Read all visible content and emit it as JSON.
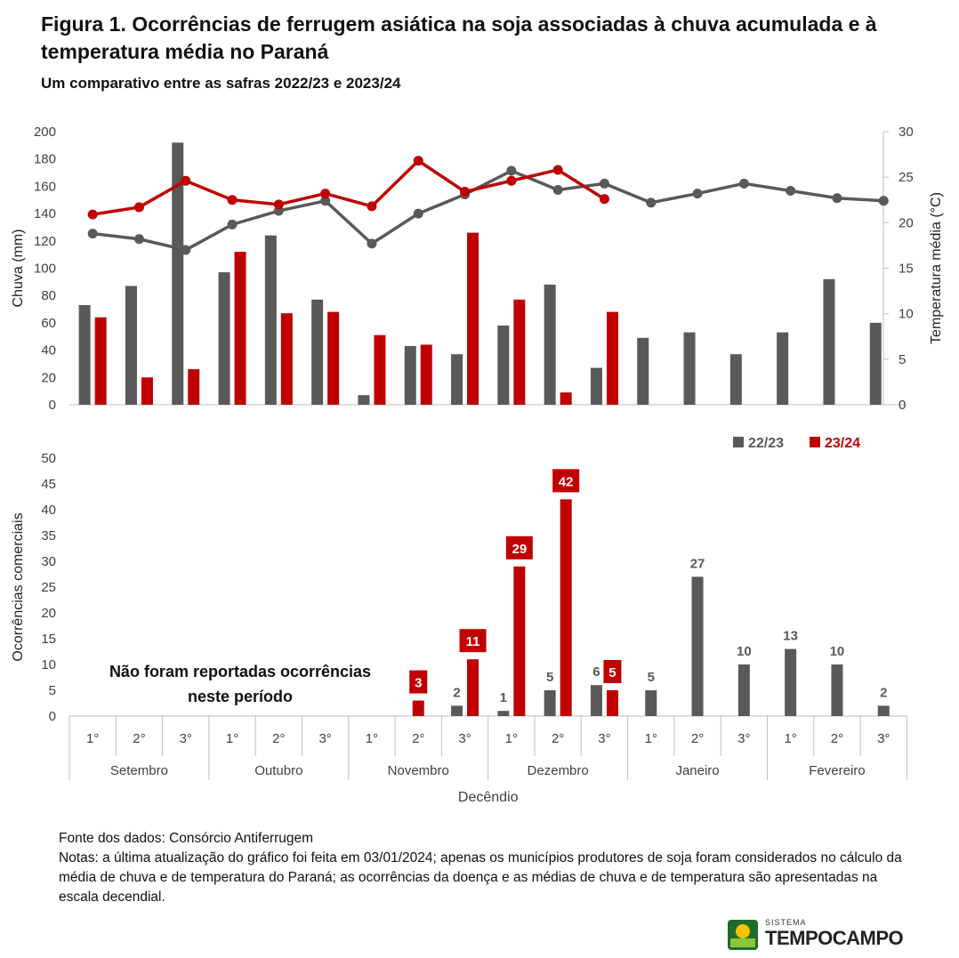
{
  "title": "Figura 1. Ocorrências de ferrugem asiática na soja associadas à chuva acumulada e à temperatura média no Paraná",
  "subtitle": "Um comparativo entre as safras 2022/23 e 2023/24",
  "colors": {
    "s2223": "#595959",
    "s2324": "#c00000",
    "axis": "#bfbfbf",
    "text": "#404040"
  },
  "chart_data": [
    {
      "type": "bar",
      "ylabel": "Chuva (mm)",
      "y2label": "Temperatura média (°C)",
      "ylim": [
        0,
        200
      ],
      "y2lim": [
        0,
        30
      ],
      "yticks": [
        "0",
        "20",
        "40",
        "60",
        "80",
        "100",
        "120",
        "140",
        "160",
        "180",
        "200"
      ],
      "y2ticks": [
        "0",
        "5",
        "10",
        "15",
        "20",
        "25",
        "30"
      ],
      "categories": [
        "Set 1°",
        "Set 2°",
        "Set 3°",
        "Out 1°",
        "Out 2°",
        "Out 3°",
        "Nov 1°",
        "Nov 2°",
        "Nov 3°",
        "Dez 1°",
        "Dez 2°",
        "Dez 3°",
        "Jan 1°",
        "Jan 2°",
        "Jan 3°",
        "Fev 1°",
        "Fev 2°",
        "Fev 3°"
      ],
      "series": [
        {
          "name": "22/23",
          "kind": "bar",
          "values": [
            73,
            87,
            192,
            97,
            124,
            77,
            7,
            43,
            37,
            58,
            88,
            27,
            49,
            53,
            37,
            53,
            92,
            60
          ]
        },
        {
          "name": "23/24",
          "kind": "bar",
          "values": [
            64,
            20,
            26,
            112,
            67,
            68,
            51,
            44,
            126,
            77,
            9,
            68,
            null,
            null,
            null,
            null,
            null,
            null
          ]
        },
        {
          "name": "22/23",
          "kind": "line",
          "axis": "y2",
          "values": [
            18.8,
            18.2,
            17.0,
            19.8,
            21.3,
            22.4,
            17.7,
            21.0,
            23.1,
            25.7,
            23.6,
            24.3,
            22.2,
            23.2,
            24.3,
            23.5,
            22.7,
            22.4
          ]
        },
        {
          "name": "23/24",
          "kind": "line",
          "axis": "y2",
          "values": [
            20.9,
            21.7,
            24.6,
            22.5,
            22.0,
            23.2,
            21.8,
            26.8,
            23.4,
            24.6,
            25.8,
            22.6,
            null,
            null,
            null,
            null,
            null,
            null
          ]
        }
      ]
    },
    {
      "type": "bar",
      "ylabel": "Ocorrências comerciais",
      "xlabel": "Decêndio",
      "ylim": [
        0,
        50
      ],
      "yticks": [
        "0",
        "5",
        "10",
        "15",
        "20",
        "25",
        "30",
        "35",
        "40",
        "45",
        "50"
      ],
      "legend": [
        "22/23",
        "23/24"
      ],
      "months": [
        "Setembro",
        "Outubro",
        "Novembro",
        "Dezembro",
        "Janeiro",
        "Fevereiro"
      ],
      "decendios": [
        "1°",
        "2°",
        "3°"
      ],
      "annotation": [
        "Não foram reportadas ocorrências",
        "neste período"
      ],
      "series": [
        {
          "name": "22/23",
          "values": [
            null,
            null,
            null,
            null,
            null,
            null,
            null,
            null,
            2,
            1,
            5,
            6,
            5,
            27,
            10,
            13,
            10,
            2
          ]
        },
        {
          "name": "23/24",
          "values": [
            null,
            null,
            null,
            null,
            null,
            null,
            null,
            3,
            11,
            29,
            42,
            5,
            null,
            null,
            null,
            null,
            null,
            null
          ]
        }
      ]
    }
  ],
  "notes": {
    "source": "Fonte dos dados: Consórcio Antiferrugem",
    "text": "Notas: a última atualização do gráfico foi feita em 03/01/2024;  apenas os municípios produtores de soja foram considerados no cálculo da média de chuva e de temperatura do Paraná; as ocorrências da doença e as médias de chuva e de temperatura são apresentadas na escala decendial."
  },
  "logo": {
    "small": "SISTEMA",
    "big": "TEMPOCAMPO"
  }
}
